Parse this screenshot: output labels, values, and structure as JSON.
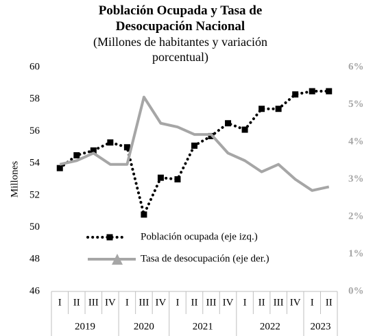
{
  "chart_data": {
    "type": "line",
    "title": "Población Ocupada y Tasa de Desocupación Nacional",
    "subtitle": "(Millones de habitantes y variación porcentual)",
    "y_label": "Millones",
    "categories": [
      "I",
      "II",
      "III",
      "IV",
      "I",
      "III",
      "IV",
      "I",
      "II",
      "III",
      "IV",
      "I",
      "II",
      "III",
      "IV",
      "I",
      "II"
    ],
    "groups": [
      {
        "label": "2019",
        "count": 4
      },
      {
        "label": "2020",
        "count": 3
      },
      {
        "label": "2021",
        "count": 4
      },
      {
        "label": "2022",
        "count": 4
      },
      {
        "label": "2023",
        "count": 2
      }
    ],
    "series": [
      {
        "name": "Población ocupada (eje izq.)",
        "color": "#000000",
        "axis": "y",
        "values": [
          53.7,
          54.5,
          54.8,
          55.3,
          55.0,
          50.8,
          53.1,
          53.0,
          55.1,
          55.7,
          56.5,
          56.1,
          57.4,
          57.4,
          58.3,
          58.5,
          58.5
        ]
      },
      {
        "name": "Tasa de desocupación (eje der.)",
        "color": "#a6a6a6",
        "axis": "y2",
        "values": [
          3.4,
          3.5,
          3.7,
          3.4,
          3.4,
          5.2,
          4.5,
          4.4,
          4.2,
          4.2,
          3.7,
          3.5,
          3.2,
          3.4,
          3.0,
          2.7,
          2.8
        ]
      }
    ],
    "ylim": [
      46,
      60
    ],
    "yticks": [
      46,
      48,
      50,
      52,
      54,
      56,
      58,
      60
    ],
    "y2lim": [
      0,
      6
    ],
    "y2ticks": [
      {
        "value": 0,
        "label": "0%"
      },
      {
        "value": 1,
        "label": "1%"
      },
      {
        "value": 2,
        "label": "2%"
      },
      {
        "value": 3,
        "label": "3%"
      },
      {
        "value": 4,
        "label": "4%"
      },
      {
        "value": 5,
        "label": "5%"
      },
      {
        "value": 6,
        "label": "6%"
      }
    ],
    "grid": false
  }
}
